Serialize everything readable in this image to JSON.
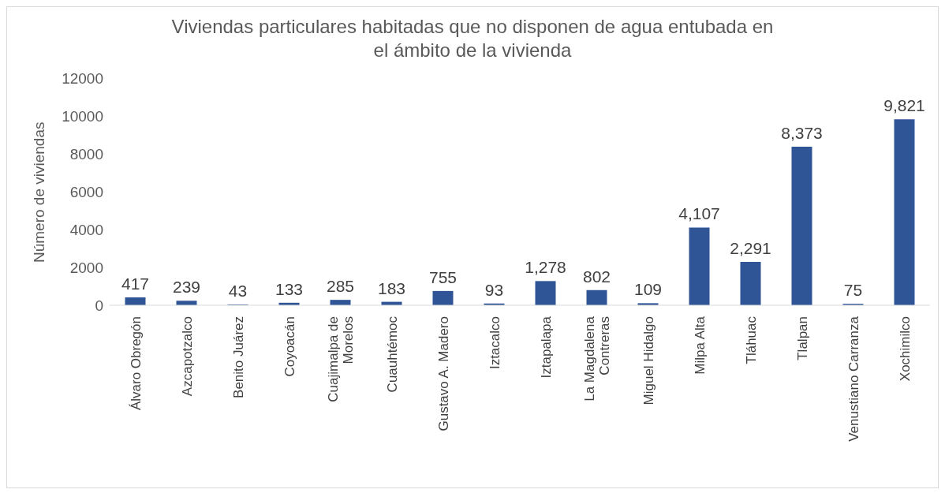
{
  "chart_data": {
    "type": "bar",
    "title": "Viviendas particulares habitadas que no disponen de agua entubada en el ámbito de la vivienda",
    "ylabel": "Número de viviendas",
    "categories": [
      "Álvaro Obregón",
      "Azcapotzalco",
      "Benito Juárez",
      "Coyoacán",
      "Cuajimalpa de Morelos",
      "Cuauhtémoc",
      "Gustavo A. Madero",
      "Iztacalco",
      "Iztapalapa",
      "La Magdalena Contreras",
      "Miguel Hidalgo",
      "Milpa Alta",
      "Tláhuac",
      "Tlalpan",
      "Venustiano Carranza",
      "Xochimilco"
    ],
    "values": [
      417,
      239,
      43,
      133,
      285,
      183,
      755,
      93,
      1278,
      802,
      109,
      4107,
      2291,
      8373,
      75,
      9821
    ],
    "value_labels": [
      "417",
      "239",
      "43",
      "133",
      "285",
      "183",
      "755",
      "93",
      "1,278",
      "802",
      "109",
      "4,107",
      "2,291",
      "8,373",
      "75",
      "9,821"
    ],
    "color": "#2f5597",
    "ylim": [
      0,
      12000
    ],
    "yticks": [
      0,
      2000,
      4000,
      6000,
      8000,
      10000,
      12000
    ],
    "grid": false,
    "legend": false
  }
}
